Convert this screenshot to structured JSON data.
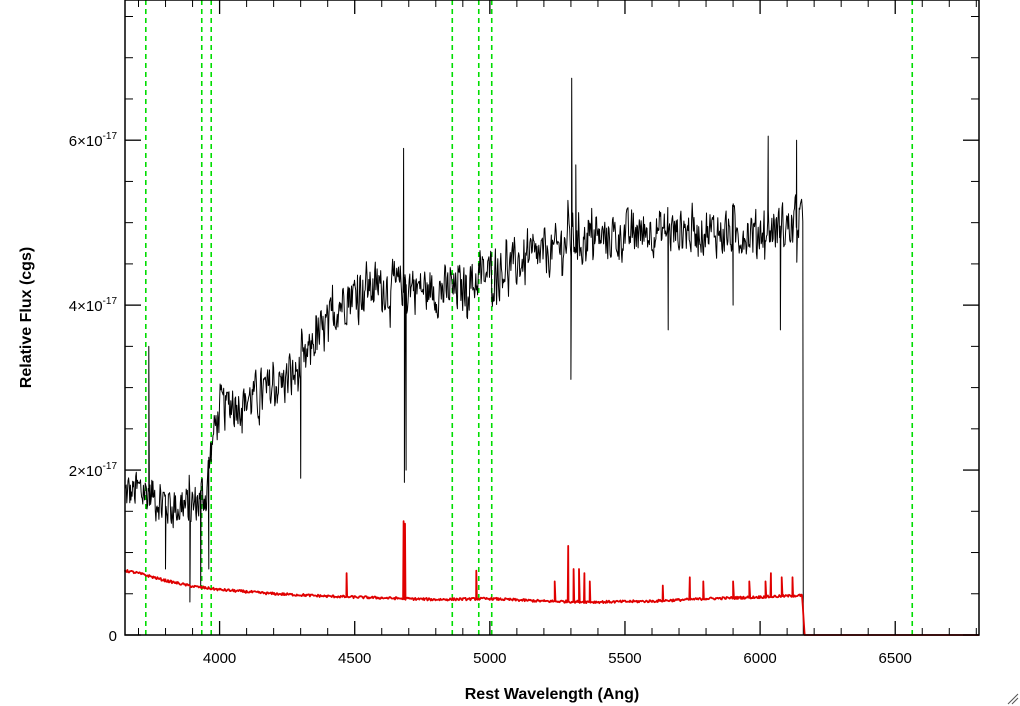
{
  "chart_data": {
    "type": "line",
    "title": "",
    "xlabel": "Rest Wavelength (Ang)",
    "ylabel": "Relative Flux (cgs)",
    "xlim": [
      3650,
      6810
    ],
    "ylim": [
      0,
      7.7e-17
    ],
    "x_ticks": [
      {
        "value": 4000,
        "label": "4000"
      },
      {
        "value": 4500,
        "label": "4500"
      },
      {
        "value": 5000,
        "label": "5000"
      },
      {
        "value": 5500,
        "label": "5500"
      },
      {
        "value": 6000,
        "label": "6000"
      },
      {
        "value": 6500,
        "label": "6500"
      }
    ],
    "y_ticks": [
      {
        "value": 0,
        "mantissa": "0",
        "exponent": ""
      },
      {
        "value": 2e-17,
        "mantissa": "2×10",
        "exponent": "-17"
      },
      {
        "value": 4e-17,
        "mantissa": "4×10",
        "exponent": "-17"
      },
      {
        "value": 6e-17,
        "mantissa": "6×10",
        "exponent": "-17"
      }
    ],
    "reference_lines": {
      "color": "#00dd00",
      "style": "dashed",
      "x": [
        3727,
        3934,
        3969,
        4861,
        4959,
        5007,
        6563
      ]
    },
    "series": [
      {
        "color": "#000000",
        "style": "noisy",
        "x_end": 6160,
        "noise": 3.5e-18,
        "envelope": [
          [
            3650,
            1.7e-17
          ],
          [
            3700,
            1.75e-17
          ],
          [
            3750,
            1.7e-17
          ],
          [
            3800,
            1.6e-17
          ],
          [
            3850,
            1.55e-17
          ],
          [
            3900,
            1.55e-17
          ],
          [
            3950,
            1.75e-17
          ],
          [
            3975,
            2.4e-17
          ],
          [
            4000,
            2.75e-17
          ],
          [
            4100,
            2.85e-17
          ],
          [
            4200,
            3e-17
          ],
          [
            4300,
            3.2e-17
          ],
          [
            4350,
            3.55e-17
          ],
          [
            4400,
            3.75e-17
          ],
          [
            4450,
            4.05e-17
          ],
          [
            4500,
            4.15e-17
          ],
          [
            4550,
            4.25e-17
          ],
          [
            4600,
            4.2e-17
          ],
          [
            4700,
            4.25e-17
          ],
          [
            4800,
            4.15e-17
          ],
          [
            4900,
            4.2e-17
          ],
          [
            5000,
            4.4e-17
          ],
          [
            5100,
            4.5e-17
          ],
          [
            5200,
            4.6e-17
          ],
          [
            5300,
            4.8e-17
          ],
          [
            5400,
            4.8e-17
          ],
          [
            5500,
            4.85e-17
          ],
          [
            5600,
            4.9e-17
          ],
          [
            5700,
            4.9e-17
          ],
          [
            5800,
            4.9e-17
          ],
          [
            5900,
            4.85e-17
          ],
          [
            6000,
            4.9e-17
          ],
          [
            6100,
            4.95e-17
          ],
          [
            6160,
            5e-17
          ]
        ],
        "features": [
          [
            3738,
            3.5e-17
          ],
          [
            3800,
            8e-18
          ],
          [
            3890,
            4e-18
          ],
          [
            3930,
            6e-18
          ],
          [
            3960,
            8e-18
          ],
          [
            4300,
            1.9e-17
          ],
          [
            4681,
            5.9e-17
          ],
          [
            4684,
            1.85e-17
          ],
          [
            4690,
            2e-17
          ],
          [
            5300,
            3.1e-17
          ],
          [
            5303,
            6.75e-17
          ],
          [
            5318,
            5.7e-17
          ],
          [
            5660,
            3.7e-17
          ],
          [
            5900,
            4e-17
          ],
          [
            6030,
            6.05e-17
          ],
          [
            6075,
            3.7e-17
          ],
          [
            6135,
            6e-17
          ],
          [
            6160,
            0
          ]
        ]
      },
      {
        "color": "#e00000",
        "style": "smooth",
        "x_end": 6810,
        "points": [
          [
            3650,
            7.8e-18
          ],
          [
            3700,
            7.5e-18
          ],
          [
            3800,
            6.6e-18
          ],
          [
            3900,
            5.9e-18
          ],
          [
            4000,
            5.5e-18
          ],
          [
            4200,
            5e-18
          ],
          [
            4400,
            4.7e-18
          ],
          [
            4600,
            4.5e-18
          ],
          [
            4800,
            4.3e-18
          ],
          [
            5000,
            4.4e-18
          ],
          [
            5200,
            4.1e-18
          ],
          [
            5400,
            4e-18
          ],
          [
            5600,
            4.1e-18
          ],
          [
            5800,
            4.4e-18
          ],
          [
            6000,
            4.6e-18
          ],
          [
            6155,
            4.8e-18
          ],
          [
            6165,
            0
          ],
          [
            6810,
            0
          ]
        ],
        "spikes": [
          [
            4470,
            7.5e-18
          ],
          [
            4681,
            1.38e-17
          ],
          [
            4686,
            1.35e-17
          ],
          [
            4950,
            7.8e-18
          ],
          [
            5240,
            6.5e-18
          ],
          [
            5290,
            1.08e-17
          ],
          [
            5310,
            8e-18
          ],
          [
            5330,
            8e-18
          ],
          [
            5350,
            7.5e-18
          ],
          [
            5370,
            6.5e-18
          ],
          [
            5640,
            6e-18
          ],
          [
            5740,
            7e-18
          ],
          [
            5790,
            6.5e-18
          ],
          [
            5900,
            6.5e-18
          ],
          [
            5960,
            6.5e-18
          ],
          [
            6020,
            6.5e-18
          ],
          [
            6040,
            7.5e-18
          ],
          [
            6080,
            7e-18
          ],
          [
            6120,
            7e-18
          ]
        ]
      }
    ],
    "grid": false,
    "legend": "none"
  }
}
